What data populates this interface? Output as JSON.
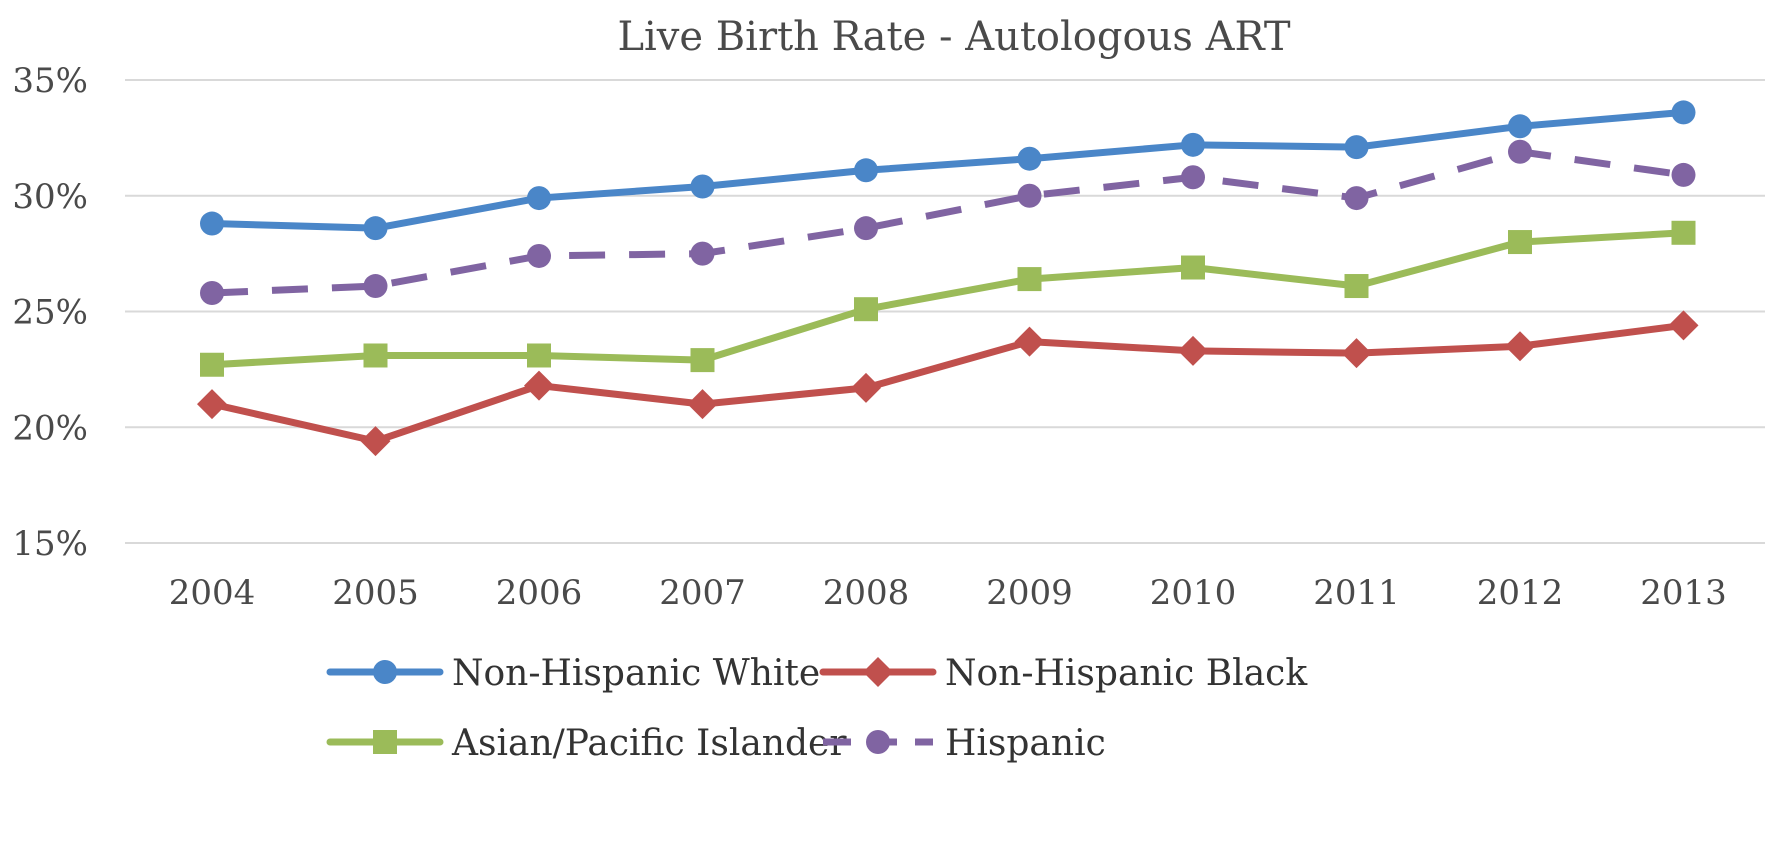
{
  "chart_data": {
    "type": "line",
    "title": "Live Birth Rate - Autologous ART",
    "xlabel": "",
    "ylabel": "",
    "categories": [
      "2004",
      "2005",
      "2006",
      "2007",
      "2008",
      "2009",
      "2010",
      "2011",
      "2012",
      "2013"
    ],
    "ylim": [
      15,
      35
    ],
    "yticks": [
      15,
      20,
      25,
      30,
      35
    ],
    "ytick_labels": [
      "15%",
      "20%",
      "25%",
      "30%",
      "35%"
    ],
    "grid": true,
    "legend_position": "bottom",
    "series": [
      {
        "name": "Non-Hispanic White",
        "color": "#4a86c8",
        "marker": "circle",
        "dash": "solid",
        "values": [
          28.8,
          28.6,
          29.9,
          30.4,
          31.1,
          31.6,
          32.2,
          32.1,
          33.0,
          33.6
        ]
      },
      {
        "name": "Non-Hispanic Black",
        "color": "#c0504d",
        "marker": "diamond",
        "dash": "solid",
        "values": [
          21.0,
          19.4,
          21.8,
          21.0,
          21.7,
          23.7,
          23.3,
          23.2,
          23.5,
          24.4
        ]
      },
      {
        "name": "Asian/Pacific Islander",
        "color": "#9bbb59",
        "marker": "square",
        "dash": "solid",
        "values": [
          22.7,
          23.1,
          23.1,
          22.9,
          25.1,
          26.4,
          26.9,
          26.1,
          28.0,
          28.4
        ]
      },
      {
        "name": "Hispanic",
        "color": "#8064a2",
        "marker": "circle",
        "dash": "dashed",
        "values": [
          25.8,
          26.1,
          27.4,
          27.5,
          28.6,
          30.0,
          30.8,
          29.9,
          31.9,
          30.9
        ]
      }
    ]
  }
}
